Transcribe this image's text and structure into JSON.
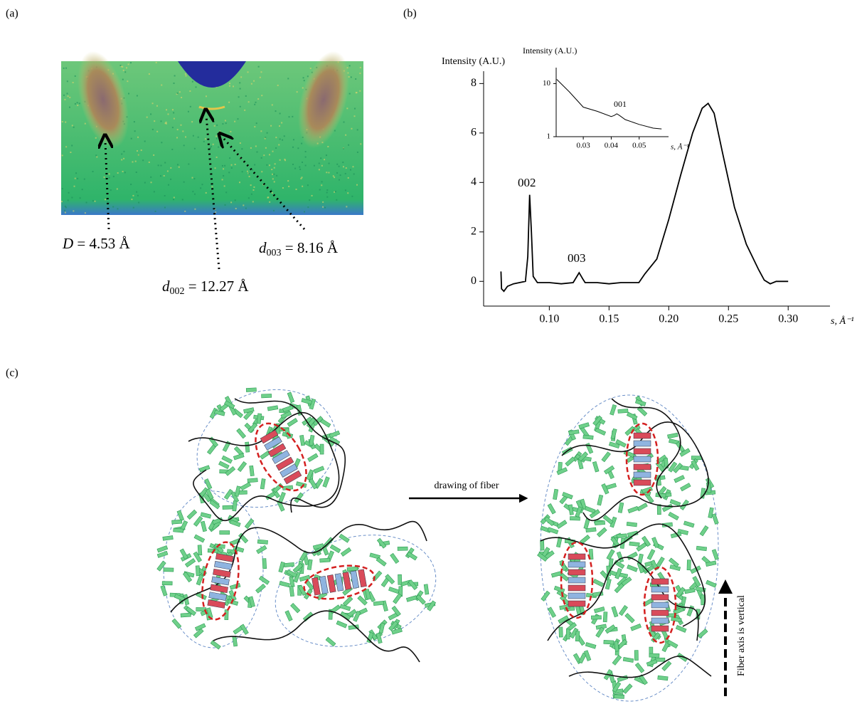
{
  "panel_labels": [
    "(a)",
    "(b)",
    "(c)"
  ],
  "panel_a": {
    "annotations": [
      {
        "symbol": "D",
        "text": " = 4.53 Å"
      },
      {
        "symbol": "d",
        "subscript": "002",
        "text": " = 12.27 Å"
      },
      {
        "symbol": "d",
        "subscript": "003",
        "text": " = 8.16 Å"
      }
    ]
  },
  "chart_data": [
    {
      "type": "line",
      "y_label": "Intensity (A.U.)",
      "x_label": "s, Å⁻¹",
      "annotations": [
        "002",
        "003"
      ],
      "xlim": [
        0.045,
        0.335
      ],
      "ylim": [
        -1,
        8.5
      ],
      "xticks": [
        {
          "value": 0.1,
          "label": "0.10"
        },
        {
          "value": 0.15,
          "label": "0.15"
        },
        {
          "value": 0.2,
          "label": "0.20"
        },
        {
          "value": 0.25,
          "label": "0.25"
        },
        {
          "value": 0.3,
          "label": "0.30"
        }
      ],
      "yticks": [
        0,
        2,
        4,
        6,
        8
      ],
      "series": [
        {
          "color": "#000000",
          "x": [
            0.0595,
            0.06,
            0.062,
            0.065,
            0.07,
            0.075,
            0.08,
            0.082,
            0.0835,
            0.085,
            0.0865,
            0.09,
            0.1,
            0.11,
            0.12,
            0.125,
            0.128,
            0.13,
            0.14,
            0.15,
            0.16,
            0.175,
            0.18,
            0.19,
            0.2,
            0.21,
            0.22,
            0.228,
            0.233,
            0.238,
            0.245,
            0.255,
            0.265,
            0.275,
            0.28,
            0.285,
            0.29,
            0.3
          ],
          "values": [
            0.4,
            -0.3,
            -0.4,
            -0.2,
            -0.1,
            -0.05,
            0,
            1.0,
            3.5,
            2.0,
            0.2,
            -0.05,
            -0.05,
            -0.1,
            -0.05,
            0.35,
            0.1,
            -0.05,
            -0.05,
            -0.1,
            -0.05,
            -0.05,
            0.3,
            0.9,
            2.5,
            4.3,
            6.0,
            7.0,
            7.2,
            6.8,
            5.2,
            3.0,
            1.5,
            0.5,
            0.05,
            -0.1,
            0.0,
            0.0
          ]
        }
      ]
    },
    {
      "type": "line",
      "y_label": "Intensity (A.U.)",
      "x_label": "s, Å⁻¹",
      "log_y": true,
      "annotations": [
        "001"
      ],
      "xlim": [
        0.0203,
        0.0605
      ],
      "ylim": [
        1,
        20
      ],
      "xticks": [
        0.03,
        0.04,
        0.05
      ],
      "yticks": [
        1,
        10
      ],
      "series": [
        {
          "color": "#000000",
          "x": [
            0.0205,
            0.025,
            0.03,
            0.035,
            0.04,
            0.041,
            0.042,
            0.043,
            0.045,
            0.05,
            0.055,
            0.058
          ],
          "values": [
            12,
            7,
            3.6,
            3.0,
            2.4,
            2.5,
            2.7,
            2.5,
            2.1,
            1.7,
            1.45,
            1.4
          ]
        }
      ]
    }
  ],
  "panel_c": {
    "arrow_label": "drawing of fiber",
    "axis_note": "Fiber axis is vertical"
  }
}
